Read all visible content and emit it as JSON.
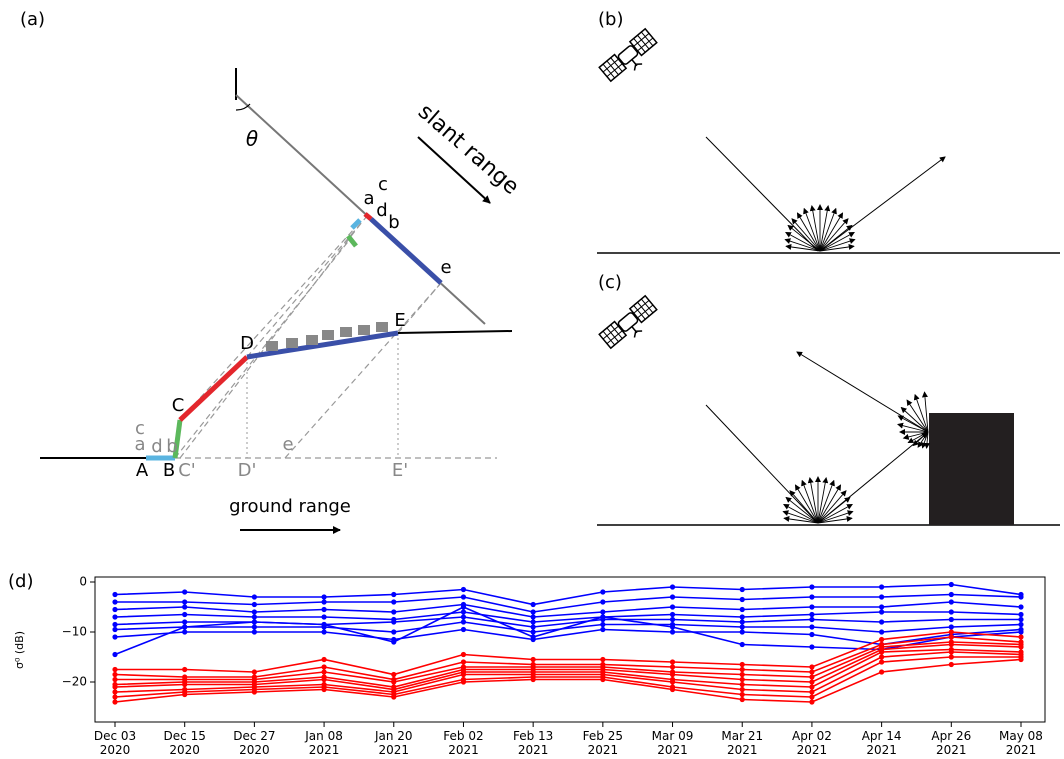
{
  "panels": {
    "a": "(a)",
    "b": "(b)",
    "c": "(c)",
    "d": "(d)"
  },
  "diagram_a": {
    "labels": [
      "θ",
      "slant range",
      "a",
      "c",
      "d",
      "b",
      "e",
      "D",
      "E",
      "C",
      "c",
      "a",
      "d",
      "b",
      "A",
      "B",
      "C'",
      "D'",
      "e",
      "E'",
      "ground range"
    ]
  },
  "chart_data": {
    "type": "line",
    "categories": [
      "Dec 03\n2020",
      "Dec 15\n2020",
      "Dec 27\n2020",
      "Jan 08\n2021",
      "Jan 20\n2021",
      "Feb 02\n2021",
      "Feb 13\n2021",
      "Feb 25\n2021",
      "Mar 09\n2021",
      "Mar 21\n2021",
      "Apr 02\n2021",
      "Apr 14\n2021",
      "Apr 26\n2021",
      "May 08\n2021"
    ],
    "y_label": "σ⁰ (dB)",
    "ylim": [
      -28,
      1
    ],
    "yticks": [
      0,
      {
        "value": -10,
        "label": "−10"
      },
      {
        "value": -20,
        "label": "−20"
      }
    ],
    "series": [
      {
        "color": "#0000ff",
        "values": [
          -2.5,
          -2,
          -3,
          -3,
          -2.5,
          -1.5,
          -4.5,
          -2,
          -1,
          -1.5,
          -1,
          -1,
          -0.5,
          -2.5
        ]
      },
      {
        "color": "#0000ff",
        "values": [
          -4,
          -4,
          -4.5,
          -4,
          -4,
          -3,
          -6,
          -4,
          -3,
          -3.5,
          -3,
          -3,
          -2.5,
          -3
        ]
      },
      {
        "color": "#0000ff",
        "values": [
          -5.5,
          -5,
          -6,
          -5.5,
          -6,
          -4.5,
          -7,
          -6,
          -5,
          -5.5,
          -5,
          -5,
          -4,
          -5
        ]
      },
      {
        "color": "#0000ff",
        "values": [
          -7,
          -6.5,
          -7,
          -7,
          -7.5,
          -6,
          -8,
          -7,
          -6.5,
          -7,
          -6.5,
          -6,
          -6,
          -6.5
        ]
      },
      {
        "color": "#0000ff",
        "values": [
          -8.5,
          -8,
          -8,
          -8.5,
          -8,
          -7,
          -9,
          -7.5,
          -7.5,
          -8,
          -7.5,
          -8,
          -7.5,
          -7.5
        ]
      },
      {
        "color": "#0000ff",
        "values": [
          -9.5,
          -9,
          -9,
          -9,
          -10,
          -8,
          -10,
          -8.5,
          -8.5,
          -9,
          -9,
          -10,
          -9,
          -8.5
        ]
      },
      {
        "color": "#0000ff",
        "values": [
          -11,
          -10,
          -10,
          -10,
          -11.5,
          -9.5,
          -11.5,
          -9.5,
          -10,
          -10,
          -10.5,
          -12.5,
          -10.5,
          -9.5
        ]
      },
      {
        "color": "#0000ff",
        "values": [
          -14.5,
          -9,
          -8,
          -8.5,
          -12,
          -5,
          -11,
          -7,
          -9,
          -12.5,
          -13,
          -13.5,
          -11,
          -10
        ]
      },
      {
        "color": "#ff0000",
        "values": [
          -17.5,
          -17.5,
          -18,
          -15.5,
          -18.5,
          -14.5,
          -15.5,
          -15.5,
          -16,
          -16.5,
          -17,
          -11.5,
          -10,
          -11
        ]
      },
      {
        "color": "#ff0000",
        "values": [
          -18.5,
          -19,
          -19,
          -17,
          -19.5,
          -16,
          -16.5,
          -16.5,
          -17,
          -17.5,
          -18,
          -12.5,
          -11,
          -12
        ]
      },
      {
        "color": "#ff0000",
        "values": [
          -19.5,
          -19.5,
          -19.5,
          -18,
          -20,
          -17,
          -17,
          -17,
          -18,
          -18.5,
          -19,
          -13,
          -12,
          -12.5
        ]
      },
      {
        "color": "#ff0000",
        "values": [
          -20.5,
          -20,
          -20,
          -19,
          -21,
          -17.5,
          -17.5,
          -17.5,
          -18.5,
          -19.5,
          -20,
          -13.5,
          -12.5,
          -13
        ]
      },
      {
        "color": "#ff0000",
        "values": [
          -21,
          -20.5,
          -20.5,
          -19.5,
          -21.5,
          -18,
          -18,
          -18,
          -19.5,
          -20.5,
          -21,
          -14,
          -13.5,
          -14
        ]
      },
      {
        "color": "#ff0000",
        "values": [
          -22,
          -21.5,
          -21,
          -20.5,
          -22,
          -18.5,
          -18.5,
          -18.5,
          -20,
          -21.5,
          -22,
          -15,
          -14,
          -14.5
        ]
      },
      {
        "color": "#ff0000",
        "values": [
          -23,
          -22,
          -21.5,
          -21,
          -22.5,
          -19.5,
          -19,
          -19,
          -21,
          -22.5,
          -23,
          -16,
          -15,
          -15
        ]
      },
      {
        "color": "#ff0000",
        "values": [
          -24,
          -22.5,
          -22,
          -21.5,
          -23,
          -20,
          -19.5,
          -19.5,
          -21.5,
          -23.5,
          -24,
          -18,
          -16.5,
          -15.5
        ]
      }
    ]
  }
}
